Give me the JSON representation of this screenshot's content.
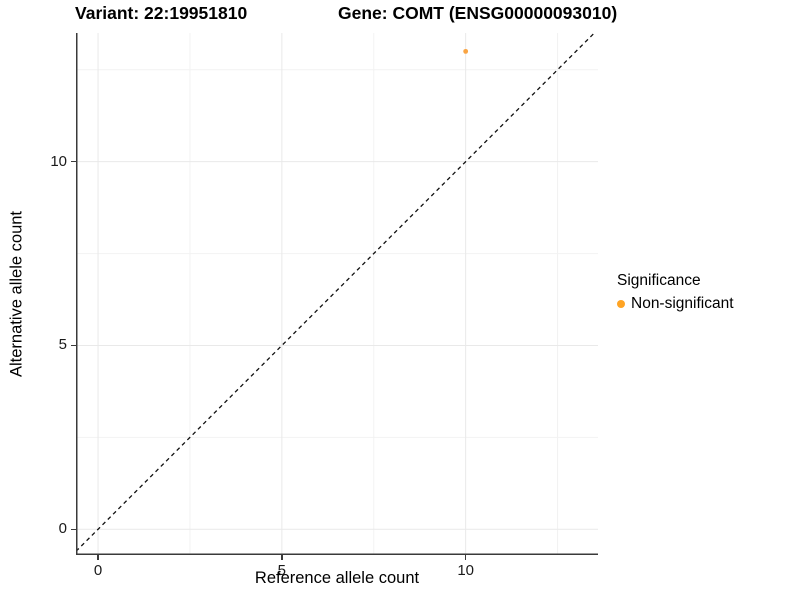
{
  "header": {
    "variant_title": "Variant: 22:19951810",
    "gene_title": "Gene: COMT (ENSG00000093010)"
  },
  "chart_data": {
    "type": "scatter",
    "title": "Variant: 22:19951810    Gene: COMT (ENSG00000093010)",
    "xlabel": "Reference allele count",
    "ylabel": "Alternative allele count",
    "x_ticks": [
      0,
      5,
      10
    ],
    "y_ticks": [
      0,
      5,
      10
    ],
    "x_minor": [
      2.5,
      7.5,
      12.5
    ],
    "y_minor": [
      2.5,
      7.5,
      12.5
    ],
    "xlim": [
      -0.6,
      13.6
    ],
    "ylim": [
      -0.7,
      13.5
    ],
    "grid": true,
    "points": [
      {
        "x": 10,
        "y": 13,
        "series": "Non-significant"
      }
    ],
    "identity_line": {
      "style": "dashed",
      "equation": "y = x"
    },
    "legend": {
      "title": "Significance",
      "position": "right",
      "items": [
        {
          "label": "Non-significant",
          "color": "#FFA424"
        }
      ]
    },
    "colors": {
      "point": "#F9A443",
      "grid_major": "#e9e9e9",
      "grid_minor": "#f2f2f2",
      "axis_line": "#3a3a3a",
      "dashed_line": "#111111",
      "background": "#ffffff"
    }
  }
}
